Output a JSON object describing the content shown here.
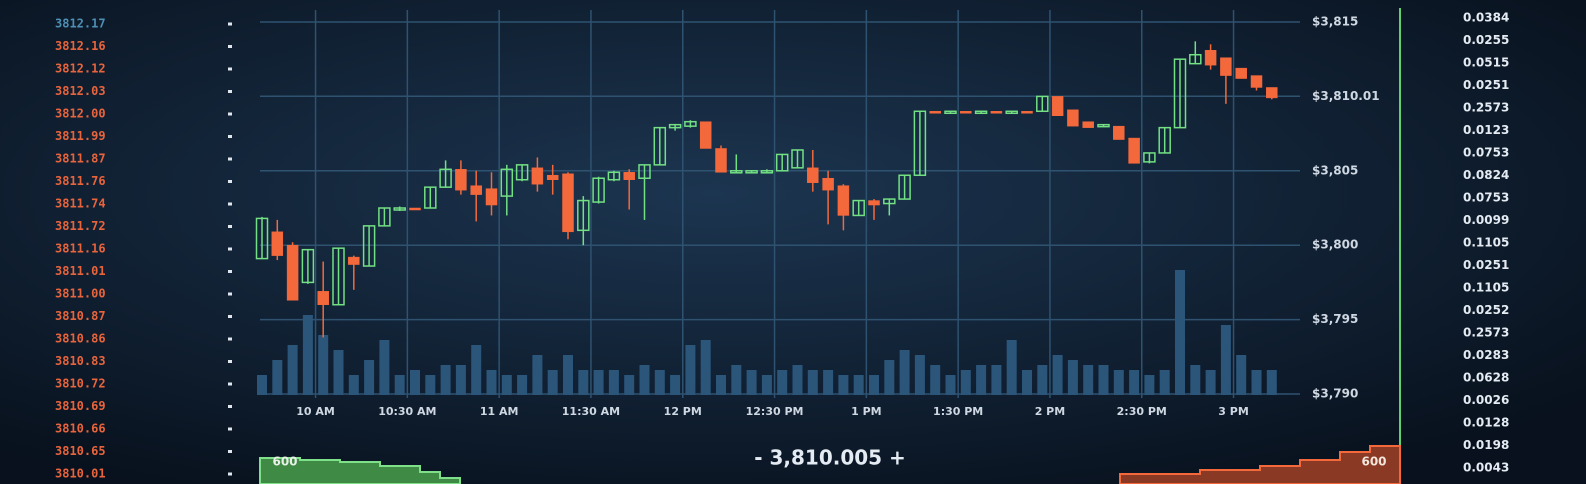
{
  "chart_data": {
    "type": "candlestick",
    "categories": [
      null,
      null,
      null,
      "10 AM",
      null,
      null,
      null,
      null,
      null,
      "10:30 AM",
      null,
      null,
      null,
      null,
      null,
      "11 AM",
      null,
      null,
      null,
      null,
      null,
      "11:30 AM",
      null,
      null,
      null,
      null,
      null,
      "12 PM",
      null,
      null,
      null,
      null,
      null,
      "12:30 PM",
      null,
      null,
      null,
      null,
      null,
      "1 PM",
      null,
      null,
      null,
      null,
      null,
      "1:30 PM",
      null,
      null,
      null,
      null,
      null,
      "2 PM",
      null,
      null,
      null,
      null,
      null,
      "2:30 PM",
      null,
      null,
      null,
      null,
      null,
      "3 PM",
      null,
      null,
      null
    ],
    "open": [
      3799.1,
      3800.9,
      3800.0,
      3797.5,
      3796.9,
      3796.0,
      3799.2,
      3798.6,
      3801.3,
      3802.4,
      3802.5,
      3802.5,
      3803.9,
      3805.1,
      3804.0,
      3803.8,
      3803.3,
      3804.4,
      3805.2,
      3804.7,
      3804.8,
      3801.0,
      3802.9,
      3804.4,
      3804.9,
      3804.5,
      3805.4,
      3807.9,
      3808.0,
      3808.3,
      3806.5,
      3805.0,
      3805.0,
      3805.0,
      3805.0,
      3805.2,
      3805.2,
      3804.5,
      3804.0,
      3802.0,
      3803.0,
      3802.8,
      3803.1,
      3804.7,
      3809.0,
      3808.9,
      3809.0,
      3808.9,
      3809.0,
      3808.9,
      3809.0,
      3809.0,
      3810.0,
      3809.1,
      3808.3,
      3808.0,
      3808.0,
      3807.2,
      3805.6,
      3806.2,
      3807.9,
      3812.2,
      3813.1,
      3812.6,
      3811.9,
      3811.4,
      3810.6
    ],
    "high": [
      3801.9,
      3801.7,
      3800.2,
      3799.7,
      3798.9,
      3799.8,
      3799.3,
      3801.3,
      3802.5,
      3802.6,
      3802.5,
      3803.9,
      3805.7,
      3805.7,
      3805.0,
      3804.9,
      3805.4,
      3805.4,
      3805.9,
      3805.4,
      3804.9,
      3803.3,
      3804.6,
      3805.0,
      3805.1,
      3805.4,
      3807.9,
      3808.1,
      3808.4,
      3808.3,
      3806.7,
      3806.1,
      3805.0,
      3805.1,
      3806.1,
      3806.4,
      3806.4,
      3805.0,
      3804.1,
      3803.0,
      3803.1,
      3803.1,
      3804.7,
      3809.0,
      3809.0,
      3809.0,
      3809.0,
      3809.0,
      3809.0,
      3809.0,
      3809.0,
      3810.0,
      3810.0,
      3809.1,
      3808.3,
      3808.1,
      3808.0,
      3807.2,
      3806.2,
      3807.9,
      3812.5,
      3813.7,
      3813.5,
      3812.6,
      3811.9,
      3811.4,
      3810.6
    ],
    "low": [
      3799.1,
      3799.0,
      3796.3,
      3797.4,
      3793.8,
      3796.0,
      3797.0,
      3798.6,
      3801.3,
      3802.3,
      3802.4,
      3802.5,
      3803.9,
      3803.4,
      3801.6,
      3802.0,
      3802.0,
      3804.3,
      3803.6,
      3803.4,
      3800.4,
      3800.0,
      3802.8,
      3804.3,
      3802.4,
      3801.7,
      3805.4,
      3807.7,
      3807.9,
      3806.5,
      3804.9,
      3804.9,
      3804.9,
      3804.9,
      3805.0,
      3805.2,
      3803.6,
      3801.4,
      3801.0,
      3802.0,
      3801.7,
      3802.0,
      3803.1,
      3804.7,
      3808.9,
      3808.9,
      3808.9,
      3808.9,
      3808.9,
      3808.9,
      3808.9,
      3809.0,
      3808.7,
      3808.0,
      3807.9,
      3808.0,
      3807.1,
      3805.5,
      3805.5,
      3806.2,
      3807.9,
      3812.2,
      3811.8,
      3809.5,
      3811.2,
      3810.4,
      3809.8
    ],
    "close": [
      3801.8,
      3799.3,
      3796.3,
      3799.7,
      3796.0,
      3799.8,
      3798.7,
      3801.3,
      3802.5,
      3802.5,
      3802.4,
      3803.9,
      3805.1,
      3803.7,
      3803.4,
      3802.7,
      3805.1,
      3805.4,
      3804.1,
      3804.4,
      3800.9,
      3803.0,
      3804.5,
      3804.9,
      3804.4,
      3805.4,
      3807.9,
      3808.1,
      3808.3,
      3806.5,
      3804.9,
      3805.0,
      3805.0,
      3805.0,
      3806.1,
      3806.4,
      3804.2,
      3803.7,
      3802.0,
      3803.0,
      3802.7,
      3803.1,
      3804.7,
      3809.0,
      3808.9,
      3809.0,
      3808.9,
      3809.0,
      3808.9,
      3809.0,
      3808.9,
      3810.0,
      3808.7,
      3808.0,
      3807.9,
      3808.1,
      3807.1,
      3805.5,
      3806.2,
      3807.9,
      3812.5,
      3812.8,
      3812.1,
      3811.4,
      3811.2,
      3810.6,
      3809.9
    ],
    "volume": [
      20,
      35,
      50,
      80,
      60,
      45,
      20,
      35,
      55,
      20,
      25,
      20,
      30,
      30,
      50,
      25,
      20,
      20,
      40,
      25,
      40,
      25,
      25,
      25,
      20,
      30,
      25,
      20,
      50,
      55,
      20,
      30,
      25,
      20,
      25,
      30,
      25,
      25,
      20,
      20,
      20,
      35,
      45,
      40,
      30,
      20,
      25,
      30,
      30,
      55,
      25,
      30,
      40,
      35,
      30,
      30,
      25,
      25,
      20,
      25,
      125,
      30,
      25,
      70,
      40,
      25,
      25
    ],
    "up_color": "#72e083",
    "down_color": "#f4693c",
    "volume_color": "#2b5579",
    "ylim": [
      3790,
      3815
    ],
    "yticks": [
      {
        "value": 3815,
        "label": "$3,815"
      },
      {
        "value": 3810.01,
        "label": "$3,810.01"
      },
      {
        "value": 3805,
        "label": "$3,805"
      },
      {
        "value": 3800,
        "label": "$3,800"
      },
      {
        "value": 3795,
        "label": "$3,795"
      },
      {
        "value": 3790,
        "label": "$3,790"
      }
    ],
    "grid": true
  },
  "order_book": {
    "prices": [
      "3812.17",
      "3812.16",
      "3812.12",
      "3812.03",
      "3812.00",
      "3811.99",
      "3811.87",
      "3811.76",
      "3811.74",
      "3811.72",
      "3811.16",
      "3811.01",
      "3811.00",
      "3810.87",
      "3810.86",
      "3810.83",
      "3810.72",
      "3810.69",
      "3810.66",
      "3810.65",
      "3810.01"
    ],
    "sizes": [
      "0.0384",
      "0.0255",
      "0.0515",
      "0.0251",
      "0.2573",
      "0.0123",
      "0.0753",
      "0.0824",
      "0.0753",
      "0.0099",
      "0.1105",
      "0.0251",
      "0.1105",
      "0.0252",
      "0.2573",
      "0.0283",
      "0.0628",
      "0.0026",
      "0.0128",
      "0.0198",
      "0.0043"
    ]
  },
  "mid_price": "- 3,810.005 +",
  "depth": {
    "bid_label": "600",
    "ask_label": "600"
  }
}
